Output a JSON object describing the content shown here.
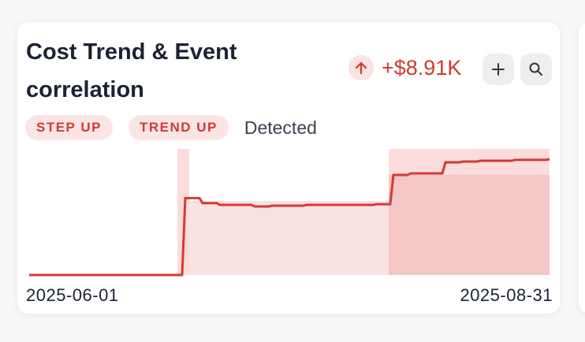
{
  "header": {
    "title": "Cost Trend & Event correlation",
    "delta": "+$8.91K",
    "badges": [
      "STEP UP",
      "TREND UP"
    ],
    "status": "Detected"
  },
  "chart_data": {
    "type": "line",
    "color": "#d23b33",
    "categories": [
      "2025-06-01",
      null,
      null,
      null,
      null,
      null,
      null,
      null,
      null,
      null,
      null,
      null,
      null,
      null,
      null,
      null,
      null,
      null,
      null,
      null,
      null,
      null,
      null,
      null,
      null,
      null,
      null,
      null,
      null,
      null,
      "2025-08-31"
    ],
    "values": [
      0,
      0,
      0,
      0,
      0,
      0,
      0,
      0,
      0,
      6100,
      5700,
      5560,
      5560,
      5440,
      5500,
      5500,
      5560,
      5560,
      5560,
      5560,
      5620,
      7940,
      8060,
      8060,
      8940,
      9000,
      9060,
      9060,
      9130,
      9130,
      9190
    ],
    "ylim": [
      0,
      10000
    ]
  }
}
